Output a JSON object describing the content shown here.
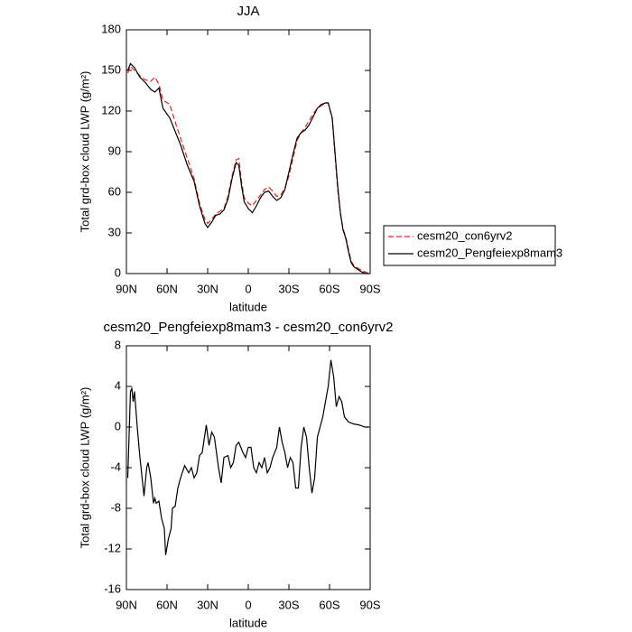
{
  "chart_data": [
    {
      "type": "line",
      "title": "JJA",
      "xlabel": "latitude",
      "ylabel": "Total grd-box cloud LWP (g/m²)",
      "x": [
        89,
        87,
        84,
        80,
        76,
        72,
        69,
        66,
        63,
        58,
        54,
        50,
        45,
        40,
        36,
        32,
        30,
        27,
        24,
        21,
        18,
        15,
        12,
        9,
        7,
        5,
        3,
        0,
        -3,
        -6,
        -9,
        -12,
        -15,
        -18,
        -21,
        -24,
        -27,
        -30,
        -33,
        -36,
        -39,
        -42,
        -45,
        -48,
        -51,
        -54,
        -57,
        -59,
        -62,
        -64,
        -66,
        -68,
        -70,
        -72,
        -74,
        -76,
        -78,
        -81,
        -84,
        -87,
        -89
      ],
      "series": [
        {
          "name": "cesm20_con6yrv2",
          "color": "#e8211c",
          "style": "dashed",
          "values": [
            148,
            153,
            150,
            146,
            143,
            142,
            145,
            140,
            128,
            125,
            112,
            100,
            85,
            70,
            52,
            40,
            37,
            40,
            44,
            46,
            48,
            57,
            72,
            84,
            85,
            68,
            56,
            52,
            50,
            54,
            58,
            62,
            64,
            61,
            57,
            58,
            63,
            72,
            85,
            98,
            104,
            108,
            113,
            118,
            122,
            124,
            126,
            126,
            114,
            88,
            62,
            44,
            33,
            27,
            18,
            9,
            6,
            4,
            2,
            1,
            0
          ]
        },
        {
          "name": "cesm20_Pengfeiexp8mam3",
          "color": "#000000",
          "style": "solid",
          "values": [
            150,
            155,
            152,
            145,
            141,
            136,
            134,
            137,
            122,
            115,
            105,
            95,
            80,
            68,
            50,
            37,
            34,
            38,
            43,
            44,
            47,
            55,
            70,
            82,
            80,
            65,
            53,
            48,
            45,
            50,
            56,
            60,
            61,
            57,
            54,
            56,
            62,
            75,
            88,
            100,
            104,
            106,
            110,
            116,
            122,
            125,
            126,
            126,
            115,
            90,
            65,
            45,
            32,
            26,
            16,
            8,
            5,
            3,
            1,
            0,
            0
          ]
        }
      ],
      "xlim": [
        90,
        -90
      ],
      "xticks": [
        {
          "value": 90,
          "label": "90N"
        },
        {
          "value": 60,
          "label": "60N"
        },
        {
          "value": 30,
          "label": "30N"
        },
        0,
        {
          "value": -30,
          "label": "30S"
        },
        {
          "value": -60,
          "label": "60S"
        },
        {
          "value": -90,
          "label": "90S"
        }
      ],
      "ylim": [
        0,
        180
      ],
      "yticks": [
        0,
        30,
        60,
        90,
        120,
        150,
        180
      ],
      "legend": "right"
    },
    {
      "type": "line",
      "title": "cesm20_Pengfeiexp8mam3 - cesm20_con6yrv2",
      "xlabel": "latitude",
      "ylabel": "Total grd-box cloud LWP (g/m²)",
      "x": [
        89,
        87,
        86,
        85,
        84,
        82,
        80,
        78,
        77,
        75,
        74,
        72,
        70,
        69,
        68,
        66,
        64,
        62,
        61,
        59,
        57,
        56,
        54,
        52,
        50,
        47,
        44,
        42,
        40,
        38,
        36,
        34,
        31,
        29,
        27,
        25,
        22,
        20,
        18,
        15,
        13,
        11,
        9,
        7,
        4,
        2,
        0,
        -2,
        -4,
        -6,
        -8,
        -10,
        -12,
        -14,
        -16,
        -18,
        -21,
        -23,
        -25,
        -27,
        -29,
        -31,
        -33,
        -35,
        -37,
        -39,
        -41,
        -43,
        -45,
        -47,
        -49,
        -51,
        -53,
        -55,
        -57,
        -59,
        -61,
        -63,
        -65,
        -67,
        -69,
        -71,
        -74,
        -78,
        -82,
        -86,
        -89
      ],
      "color": "#000000",
      "values": [
        -5,
        3.5,
        3.8,
        2.5,
        3.5,
        0,
        -3,
        -5.5,
        -6.8,
        -4,
        -3.5,
        -5,
        -7.5,
        -7,
        -7.5,
        -7.3,
        -9,
        -10,
        -12.6,
        -11,
        -10,
        -8,
        -7.8,
        -6,
        -5,
        -3.8,
        -4.5,
        -4,
        -5,
        -4.5,
        -2.8,
        -2.5,
        0.2,
        -1.8,
        -0.5,
        -1,
        -4,
        -5.5,
        -3,
        -2.8,
        -4,
        -3.5,
        -1.8,
        -1.5,
        -2.5,
        -3,
        -2,
        -2,
        -4,
        -4.5,
        -3.5,
        -4,
        -3,
        -4.5,
        -4,
        -3,
        -2,
        0,
        -1.5,
        -2.5,
        -4,
        -3,
        -3.5,
        -6,
        -6,
        -2,
        0,
        -1,
        -4,
        -6.5,
        -5,
        -1,
        0,
        1,
        2.5,
        4,
        6.6,
        5,
        2,
        3,
        2.5,
        1,
        0.5,
        0.3,
        0.2,
        0,
        0
      ],
      "xlim": [
        90,
        -90
      ],
      "xticks": [
        {
          "value": 90,
          "label": "90N"
        },
        {
          "value": 60,
          "label": "60N"
        },
        {
          "value": 30,
          "label": "30N"
        },
        0,
        {
          "value": -30,
          "label": "30S"
        },
        {
          "value": -60,
          "label": "60S"
        },
        {
          "value": -90,
          "label": "90S"
        }
      ],
      "ylim": [
        -16,
        8
      ],
      "yticks": [
        -16,
        -12,
        -8,
        -4,
        0,
        4,
        8
      ]
    }
  ]
}
